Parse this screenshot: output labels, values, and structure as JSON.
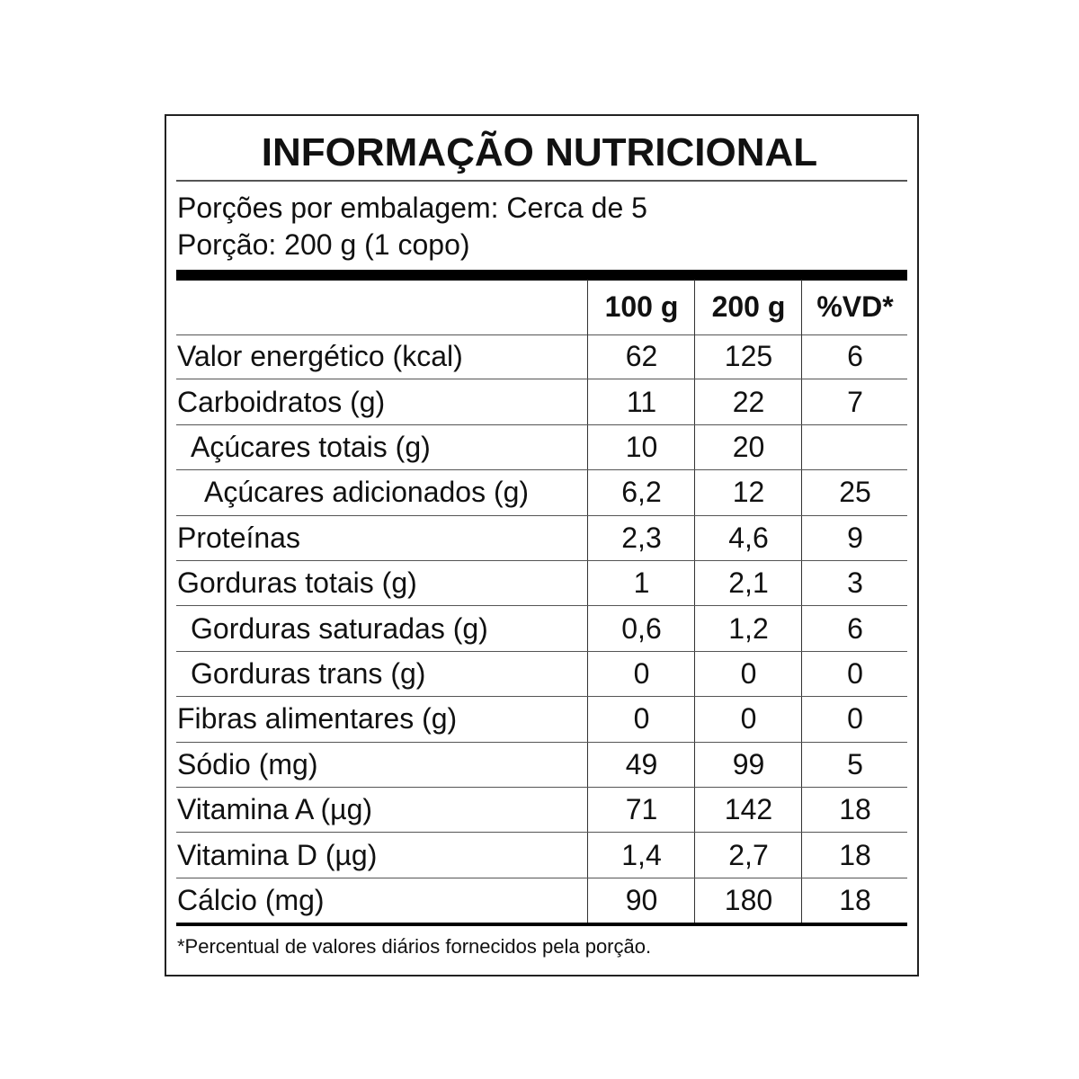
{
  "title": "INFORMAÇÃO NUTRICIONAL",
  "servings_per_package": "Porções por embalagem: Cerca de 5",
  "serving_size": "Porção: 200 g (1 copo)",
  "columns": [
    "100 g",
    "200 g",
    "%VD*"
  ],
  "rows": [
    {
      "label": "Valor energético (kcal)",
      "indent": 0,
      "v100": "62",
      "v200": "125",
      "vd": "6"
    },
    {
      "label": "Carboidratos (g)",
      "indent": 0,
      "v100": "11",
      "v200": "22",
      "vd": "7"
    },
    {
      "label": "Açúcares totais (g)",
      "indent": 1,
      "v100": "10",
      "v200": "20",
      "vd": ""
    },
    {
      "label": "Açúcares adicionados (g)",
      "indent": 2,
      "v100": "6,2",
      "v200": "12",
      "vd": "25"
    },
    {
      "label": "Proteínas",
      "indent": 0,
      "v100": "2,3",
      "v200": "4,6",
      "vd": "9"
    },
    {
      "label": "Gorduras totais (g)",
      "indent": 0,
      "v100": "1",
      "v200": "2,1",
      "vd": "3"
    },
    {
      "label": "Gorduras saturadas (g)",
      "indent": 1,
      "v100": "0,6",
      "v200": "1,2",
      "vd": "6"
    },
    {
      "label": "Gorduras trans (g)",
      "indent": 1,
      "v100": "0",
      "v200": "0",
      "vd": "0"
    },
    {
      "label": "Fibras alimentares (g)",
      "indent": 0,
      "v100": "0",
      "v200": "0",
      "vd": "0"
    },
    {
      "label": "Sódio (mg)",
      "indent": 0,
      "v100": "49",
      "v200": "99",
      "vd": "5"
    },
    {
      "label": "Vitamina A (µg)",
      "indent": 0,
      "v100": "71",
      "v200": "142",
      "vd": "18"
    },
    {
      "label": "Vitamina D (µg)",
      "indent": 0,
      "v100": "1,4",
      "v200": "2,7",
      "vd": "18"
    },
    {
      "label": "Cálcio (mg)",
      "indent": 0,
      "v100": "90",
      "v200": "180",
      "vd": "18"
    }
  ],
  "footnote": "*Percentual de valores diários fornecidos pela porção."
}
